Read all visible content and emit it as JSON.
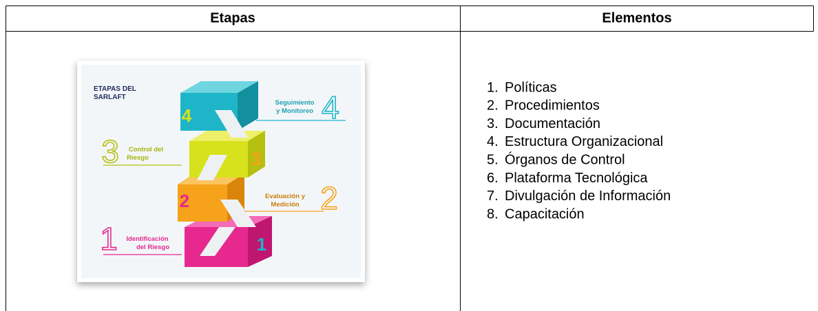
{
  "table": {
    "headers": [
      "Etapas",
      "Elementos"
    ]
  },
  "image": {
    "title": [
      "ETAPAS DEL",
      "SARLAFT"
    ],
    "stages": [
      {
        "number": "1",
        "label": [
          "Identificación",
          "del Riesgo"
        ]
      },
      {
        "number": "2",
        "label": [
          "Evaluación y",
          "Medición"
        ]
      },
      {
        "number": "3",
        "label": [
          "Control del",
          "Riesgo"
        ]
      },
      {
        "number": "4",
        "label": [
          "Seguimiento",
          "y Monitoreo"
        ]
      }
    ]
  },
  "elements": [
    {
      "number": "1.",
      "text": "Políticas"
    },
    {
      "number": "2.",
      "text": "Procedimientos"
    },
    {
      "number": "3.",
      "text": "Documentación"
    },
    {
      "number": "4.",
      "text": "Estructura Organizacional"
    },
    {
      "number": "5.",
      "text": "Órganos de Control"
    },
    {
      "number": "6.",
      "text": "Plataforma Tecnológica"
    },
    {
      "number": "7.",
      "text": "Divulgación de Información"
    },
    {
      "number": "8.",
      "text": "Capacitación"
    }
  ]
}
